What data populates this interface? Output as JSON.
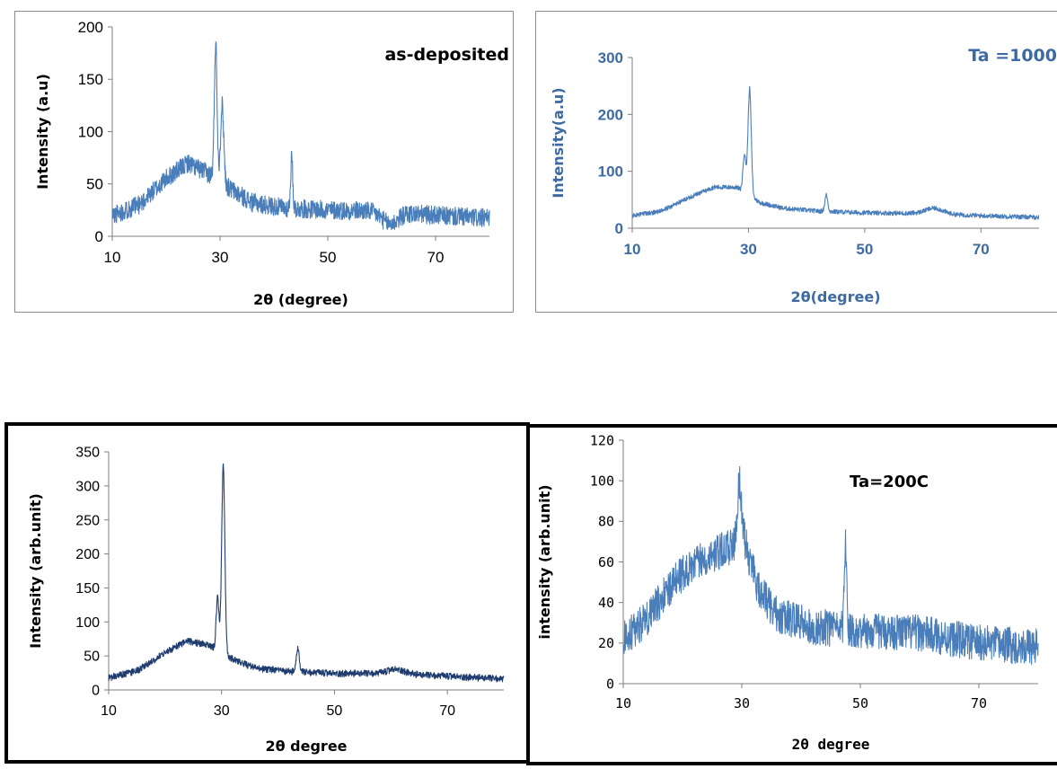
{
  "chart_data": [
    {
      "type": "line",
      "title": "as-deposited",
      "xlabel": "2θ (degree)",
      "ylabel": "Intensity (a.u)",
      "xlim": [
        10,
        80
      ],
      "ylim": [
        0,
        200
      ],
      "xticks": [
        "10",
        "30",
        "50",
        "70"
      ],
      "yticks": [
        "0",
        "50",
        "100",
        "150",
        "200"
      ],
      "color": "#4a7ebb",
      "noise": 9,
      "baseline": [
        [
          10,
          20
        ],
        [
          15,
          30
        ],
        [
          20,
          55
        ],
        [
          24,
          70
        ],
        [
          27,
          62
        ],
        [
          28.5,
          58
        ],
        [
          32,
          45
        ],
        [
          36,
          32
        ],
        [
          42,
          27
        ],
        [
          50,
          25
        ],
        [
          60,
          24
        ],
        [
          70,
          20
        ],
        [
          80,
          17
        ]
      ],
      "peaks": [
        [
          29.2,
          185,
          0.25
        ],
        [
          30.4,
          125,
          0.3
        ],
        [
          43.3,
          75,
          0.2
        ],
        [
          61.5,
          12,
          1.5
        ]
      ]
    },
    {
      "type": "line",
      "title": "Ta =1000",
      "xlabel": "2θ(degree)",
      "ylabel": "Intensity(a.u)",
      "xlim": [
        10,
        80
      ],
      "ylim": [
        0,
        300
      ],
      "xticks": [
        "10",
        "30",
        "50",
        "70"
      ],
      "yticks": [
        "0",
        "100",
        "200",
        "300"
      ],
      "color": "#4a7ebb",
      "noise": 4,
      "baseline": [
        [
          10,
          22
        ],
        [
          15,
          30
        ],
        [
          20,
          55
        ],
        [
          24,
          72
        ],
        [
          28,
          72
        ],
        [
          32,
          45
        ],
        [
          36,
          35
        ],
        [
          42,
          30
        ],
        [
          50,
          27
        ],
        [
          60,
          26
        ],
        [
          70,
          22
        ],
        [
          80,
          19
        ]
      ],
      "peaks": [
        [
          29.3,
          130,
          0.25
        ],
        [
          30.2,
          245,
          0.28
        ],
        [
          43.4,
          58,
          0.25
        ],
        [
          62,
          35,
          1.5
        ]
      ]
    },
    {
      "type": "line",
      "title": "",
      "xlabel": "2θ degree",
      "ylabel": "Intensity (arb.unit)",
      "xlim": [
        10,
        80
      ],
      "ylim": [
        0,
        350
      ],
      "xticks": [
        "10",
        "30",
        "50",
        "70"
      ],
      "yticks": [
        "0",
        "50",
        "100",
        "150",
        "200",
        "250",
        "300",
        "350"
      ],
      "color": "#1f3c6e",
      "noise": 5,
      "baseline": [
        [
          10,
          18
        ],
        [
          15,
          28
        ],
        [
          20,
          55
        ],
        [
          24,
          72
        ],
        [
          28,
          65
        ],
        [
          32,
          45
        ],
        [
          36,
          32
        ],
        [
          42,
          27
        ],
        [
          50,
          24
        ],
        [
          60,
          24
        ],
        [
          70,
          20
        ],
        [
          80,
          16
        ]
      ],
      "peaks": [
        [
          29.3,
          135,
          0.25
        ],
        [
          30.3,
          330,
          0.28
        ],
        [
          43.5,
          62,
          0.25
        ],
        [
          61,
          30,
          1.5
        ]
      ]
    },
    {
      "type": "line",
      "title": "Ta=200C",
      "xlabel": "2θ degree",
      "ylabel": "intensity (arb.unit)",
      "xlim": [
        10,
        80
      ],
      "ylim": [
        0,
        120
      ],
      "xticks": [
        "10",
        "30",
        "50",
        "70"
      ],
      "yticks": [
        "0",
        "20",
        "40",
        "60",
        "80",
        "100",
        "120"
      ],
      "color": "#4a7ebb",
      "noise": 9,
      "baseline": [
        [
          10,
          22
        ],
        [
          14,
          32
        ],
        [
          18,
          48
        ],
        [
          22,
          60
        ],
        [
          26,
          65
        ],
        [
          28.5,
          68
        ],
        [
          30.5,
          70
        ],
        [
          33,
          45
        ],
        [
          36,
          34
        ],
        [
          42,
          28
        ],
        [
          50,
          26
        ],
        [
          60,
          25
        ],
        [
          70,
          20
        ],
        [
          80,
          18
        ]
      ],
      "peaks": [
        [
          29.6,
          100,
          0.35
        ],
        [
          47.5,
          70,
          0.2
        ]
      ]
    }
  ]
}
